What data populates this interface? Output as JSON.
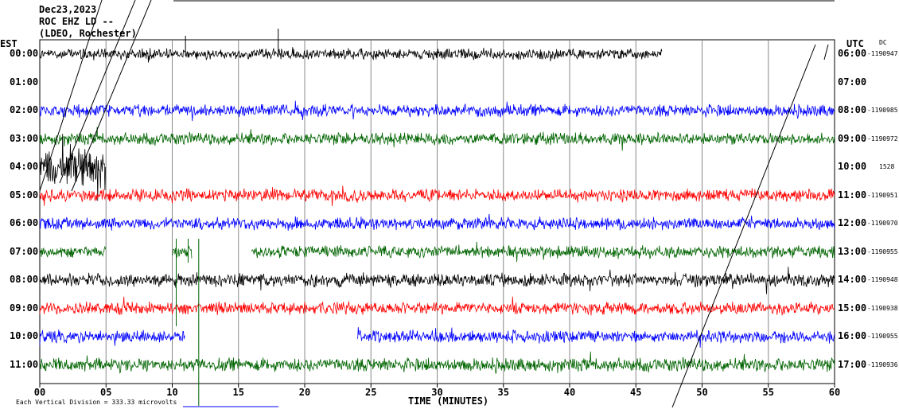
{
  "header": {
    "date": "Dec23,2023",
    "station": "ROC EHZ LD --",
    "network": "(LDEO, Rochester)"
  },
  "axes": {
    "left_title": "EST",
    "right_title": "UTC",
    "dc_label": "DC",
    "xlabel": "TIME (MINUTES)",
    "footer_note": "Each Vertical Division =  333.33 microvolts"
  },
  "colors": {
    "black": "#000000",
    "blue": "#0000ff",
    "green": "#006400",
    "red": "#ff0000",
    "grid": "#888888"
  },
  "chart_data": {
    "type": "line",
    "title": "Dec23,2023 ROC EHZ LD -- (LDEO, Rochester)",
    "xlabel": "TIME (MINUTES)",
    "xlim": [
      0,
      60
    ],
    "x_ticks": [
      "00",
      "05",
      "10",
      "15",
      "20",
      "25",
      "30",
      "35",
      "40",
      "45",
      "50",
      "55",
      "60"
    ],
    "grid": true,
    "rows": [
      {
        "est": "00:00",
        "utc": "06:00",
        "dc": "-1190947",
        "color": "black",
        "segments": [
          [
            0,
            47
          ]
        ],
        "amp": 8
      },
      {
        "est": "01:00",
        "utc": "07:00",
        "dc": "",
        "color": "none",
        "segments": [],
        "amp": 0
      },
      {
        "est": "02:00",
        "utc": "08:00",
        "dc": "-1190985",
        "color": "blue",
        "segments": [
          [
            0,
            60
          ]
        ],
        "amp": 9
      },
      {
        "est": "03:00",
        "utc": "09:00",
        "dc": "-1190972",
        "color": "green",
        "segments": [
          [
            0,
            60
          ]
        ],
        "amp": 9
      },
      {
        "est": "04:00",
        "utc": "10:00",
        "dc": "1528",
        "color": "black",
        "segments": [
          [
            0,
            5
          ]
        ],
        "amp": 30
      },
      {
        "est": "05:00",
        "utc": "11:00",
        "dc": "-1190951",
        "color": "red",
        "segments": [
          [
            0,
            60
          ]
        ],
        "amp": 9
      },
      {
        "est": "06:00",
        "utc": "12:00",
        "dc": "-1190970",
        "color": "blue",
        "segments": [
          [
            0,
            60
          ]
        ],
        "amp": 9
      },
      {
        "est": "07:00",
        "utc": "13:00",
        "dc": "-1190955",
        "color": "green",
        "segments": [
          [
            0,
            5
          ],
          [
            10,
            11.5
          ],
          [
            16,
            60
          ]
        ],
        "amp": 9
      },
      {
        "est": "08:00",
        "utc": "14:00",
        "dc": "-1190948",
        "color": "black",
        "segments": [
          [
            0,
            60
          ]
        ],
        "amp": 10
      },
      {
        "est": "09:00",
        "utc": "15:00",
        "dc": "-1190938",
        "color": "red",
        "segments": [
          [
            0,
            60
          ]
        ],
        "amp": 9
      },
      {
        "est": "10:00",
        "utc": "16:00",
        "dc": "-1190955",
        "color": "blue",
        "segments": [
          [
            0,
            11
          ],
          [
            24,
            60
          ]
        ],
        "amp": 9
      },
      {
        "est": "11:00",
        "utc": "17:00",
        "dc": "-1190936",
        "color": "green",
        "segments": [
          [
            0,
            60
          ]
        ],
        "amp": 10
      }
    ]
  }
}
